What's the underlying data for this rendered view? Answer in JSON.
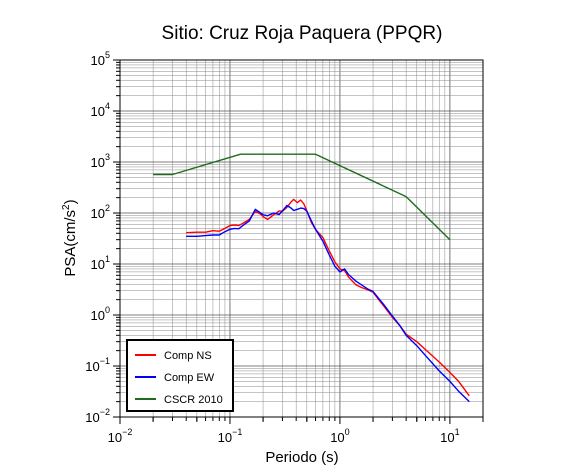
{
  "chart_data": {
    "type": "line",
    "title": "Sitio: Cruz Roja Paquera (PPQR)",
    "xlabel": "Periodo (s)",
    "ylabel_base": "PSA(cm/s",
    "ylabel_sup": "2",
    "ylabel_end": ")",
    "x_scale": "log",
    "y_scale": "log",
    "xlim": [
      0.01,
      20
    ],
    "ylim": [
      0.01,
      100000
    ],
    "grid": true,
    "legend_position": "bottom-left",
    "x_ticks": [
      {
        "base": "10",
        "exp": "−2",
        "value": 0.01
      },
      {
        "base": "10",
        "exp": "−1",
        "value": 0.1
      },
      {
        "base": "10",
        "exp": "0",
        "value": 1
      },
      {
        "base": "10",
        "exp": "1",
        "value": 10
      }
    ],
    "y_ticks": [
      {
        "base": "10",
        "exp": "−2",
        "value": 0.01
      },
      {
        "base": "10",
        "exp": "−1",
        "value": 0.1
      },
      {
        "base": "10",
        "exp": "0",
        "value": 1
      },
      {
        "base": "10",
        "exp": "1",
        "value": 10
      },
      {
        "base": "10",
        "exp": "2",
        "value": 100
      },
      {
        "base": "10",
        "exp": "3",
        "value": 1000
      },
      {
        "base": "10",
        "exp": "4",
        "value": 10000
      },
      {
        "base": "10",
        "exp": "5",
        "value": 100000
      }
    ],
    "series": [
      {
        "name": "Comp NS",
        "color": "#ff0000",
        "points": [
          [
            0.04,
            41
          ],
          [
            0.05,
            42
          ],
          [
            0.06,
            42
          ],
          [
            0.07,
            45
          ],
          [
            0.08,
            44
          ],
          [
            0.09,
            50
          ],
          [
            0.1,
            57
          ],
          [
            0.11,
            58
          ],
          [
            0.12,
            57
          ],
          [
            0.13,
            62
          ],
          [
            0.15,
            75
          ],
          [
            0.17,
            108
          ],
          [
            0.19,
            95
          ],
          [
            0.2,
            85
          ],
          [
            0.22,
            75
          ],
          [
            0.25,
            92
          ],
          [
            0.28,
            110
          ],
          [
            0.3,
            108
          ],
          [
            0.33,
            130
          ],
          [
            0.36,
            165
          ],
          [
            0.38,
            185
          ],
          [
            0.41,
            160
          ],
          [
            0.44,
            180
          ],
          [
            0.47,
            150
          ],
          [
            0.5,
            110
          ],
          [
            0.55,
            65
          ],
          [
            0.6,
            48
          ],
          [
            0.7,
            33
          ],
          [
            0.8,
            18
          ],
          [
            0.9,
            11
          ],
          [
            1.0,
            8
          ],
          [
            1.1,
            7.5
          ],
          [
            1.2,
            5.5
          ],
          [
            1.4,
            3.9
          ],
          [
            1.6,
            3.4
          ],
          [
            1.8,
            3.1
          ],
          [
            2.0,
            2.8
          ],
          [
            2.5,
            1.5
          ],
          [
            3.0,
            0.9
          ],
          [
            3.5,
            0.62
          ],
          [
            4.0,
            0.42
          ],
          [
            5.0,
            0.3
          ],
          [
            6.0,
            0.21
          ],
          [
            8.0,
            0.12
          ],
          [
            10.0,
            0.075
          ],
          [
            12.0,
            0.05
          ],
          [
            15.0,
            0.026
          ]
        ]
      },
      {
        "name": "Comp EW",
        "color": "#0000ff",
        "points": [
          [
            0.04,
            35
          ],
          [
            0.05,
            35
          ],
          [
            0.06,
            36
          ],
          [
            0.07,
            37
          ],
          [
            0.08,
            37
          ],
          [
            0.09,
            43
          ],
          [
            0.1,
            48
          ],
          [
            0.11,
            50
          ],
          [
            0.12,
            49
          ],
          [
            0.13,
            56
          ],
          [
            0.15,
            70
          ],
          [
            0.17,
            118
          ],
          [
            0.19,
            100
          ],
          [
            0.2,
            92
          ],
          [
            0.22,
            88
          ],
          [
            0.25,
            100
          ],
          [
            0.28,
            93
          ],
          [
            0.3,
            110
          ],
          [
            0.33,
            140
          ],
          [
            0.36,
            125
          ],
          [
            0.38,
            112
          ],
          [
            0.41,
            118
          ],
          [
            0.44,
            125
          ],
          [
            0.47,
            122
          ],
          [
            0.5,
            108
          ],
          [
            0.55,
            70
          ],
          [
            0.6,
            48
          ],
          [
            0.7,
            28
          ],
          [
            0.8,
            15
          ],
          [
            0.9,
            9
          ],
          [
            1.0,
            7
          ],
          [
            1.1,
            8
          ],
          [
            1.2,
            6.2
          ],
          [
            1.4,
            4.6
          ],
          [
            1.6,
            3.8
          ],
          [
            1.8,
            3.2
          ],
          [
            2.0,
            2.9
          ],
          [
            2.5,
            1.6
          ],
          [
            3.0,
            0.95
          ],
          [
            3.5,
            0.62
          ],
          [
            4.0,
            0.4
          ],
          [
            5.0,
            0.25
          ],
          [
            6.0,
            0.16
          ],
          [
            8.0,
            0.08
          ],
          [
            10.0,
            0.05
          ],
          [
            12.0,
            0.032
          ],
          [
            15.0,
            0.02
          ]
        ]
      },
      {
        "name": "CSCR 2010",
        "color": "#1e6b1e",
        "points": [
          [
            0.02,
            570
          ],
          [
            0.03,
            570
          ],
          [
            0.125,
            1420
          ],
          [
            0.6,
            1420
          ],
          [
            4.0,
            210
          ],
          [
            10.0,
            30
          ]
        ]
      }
    ]
  }
}
